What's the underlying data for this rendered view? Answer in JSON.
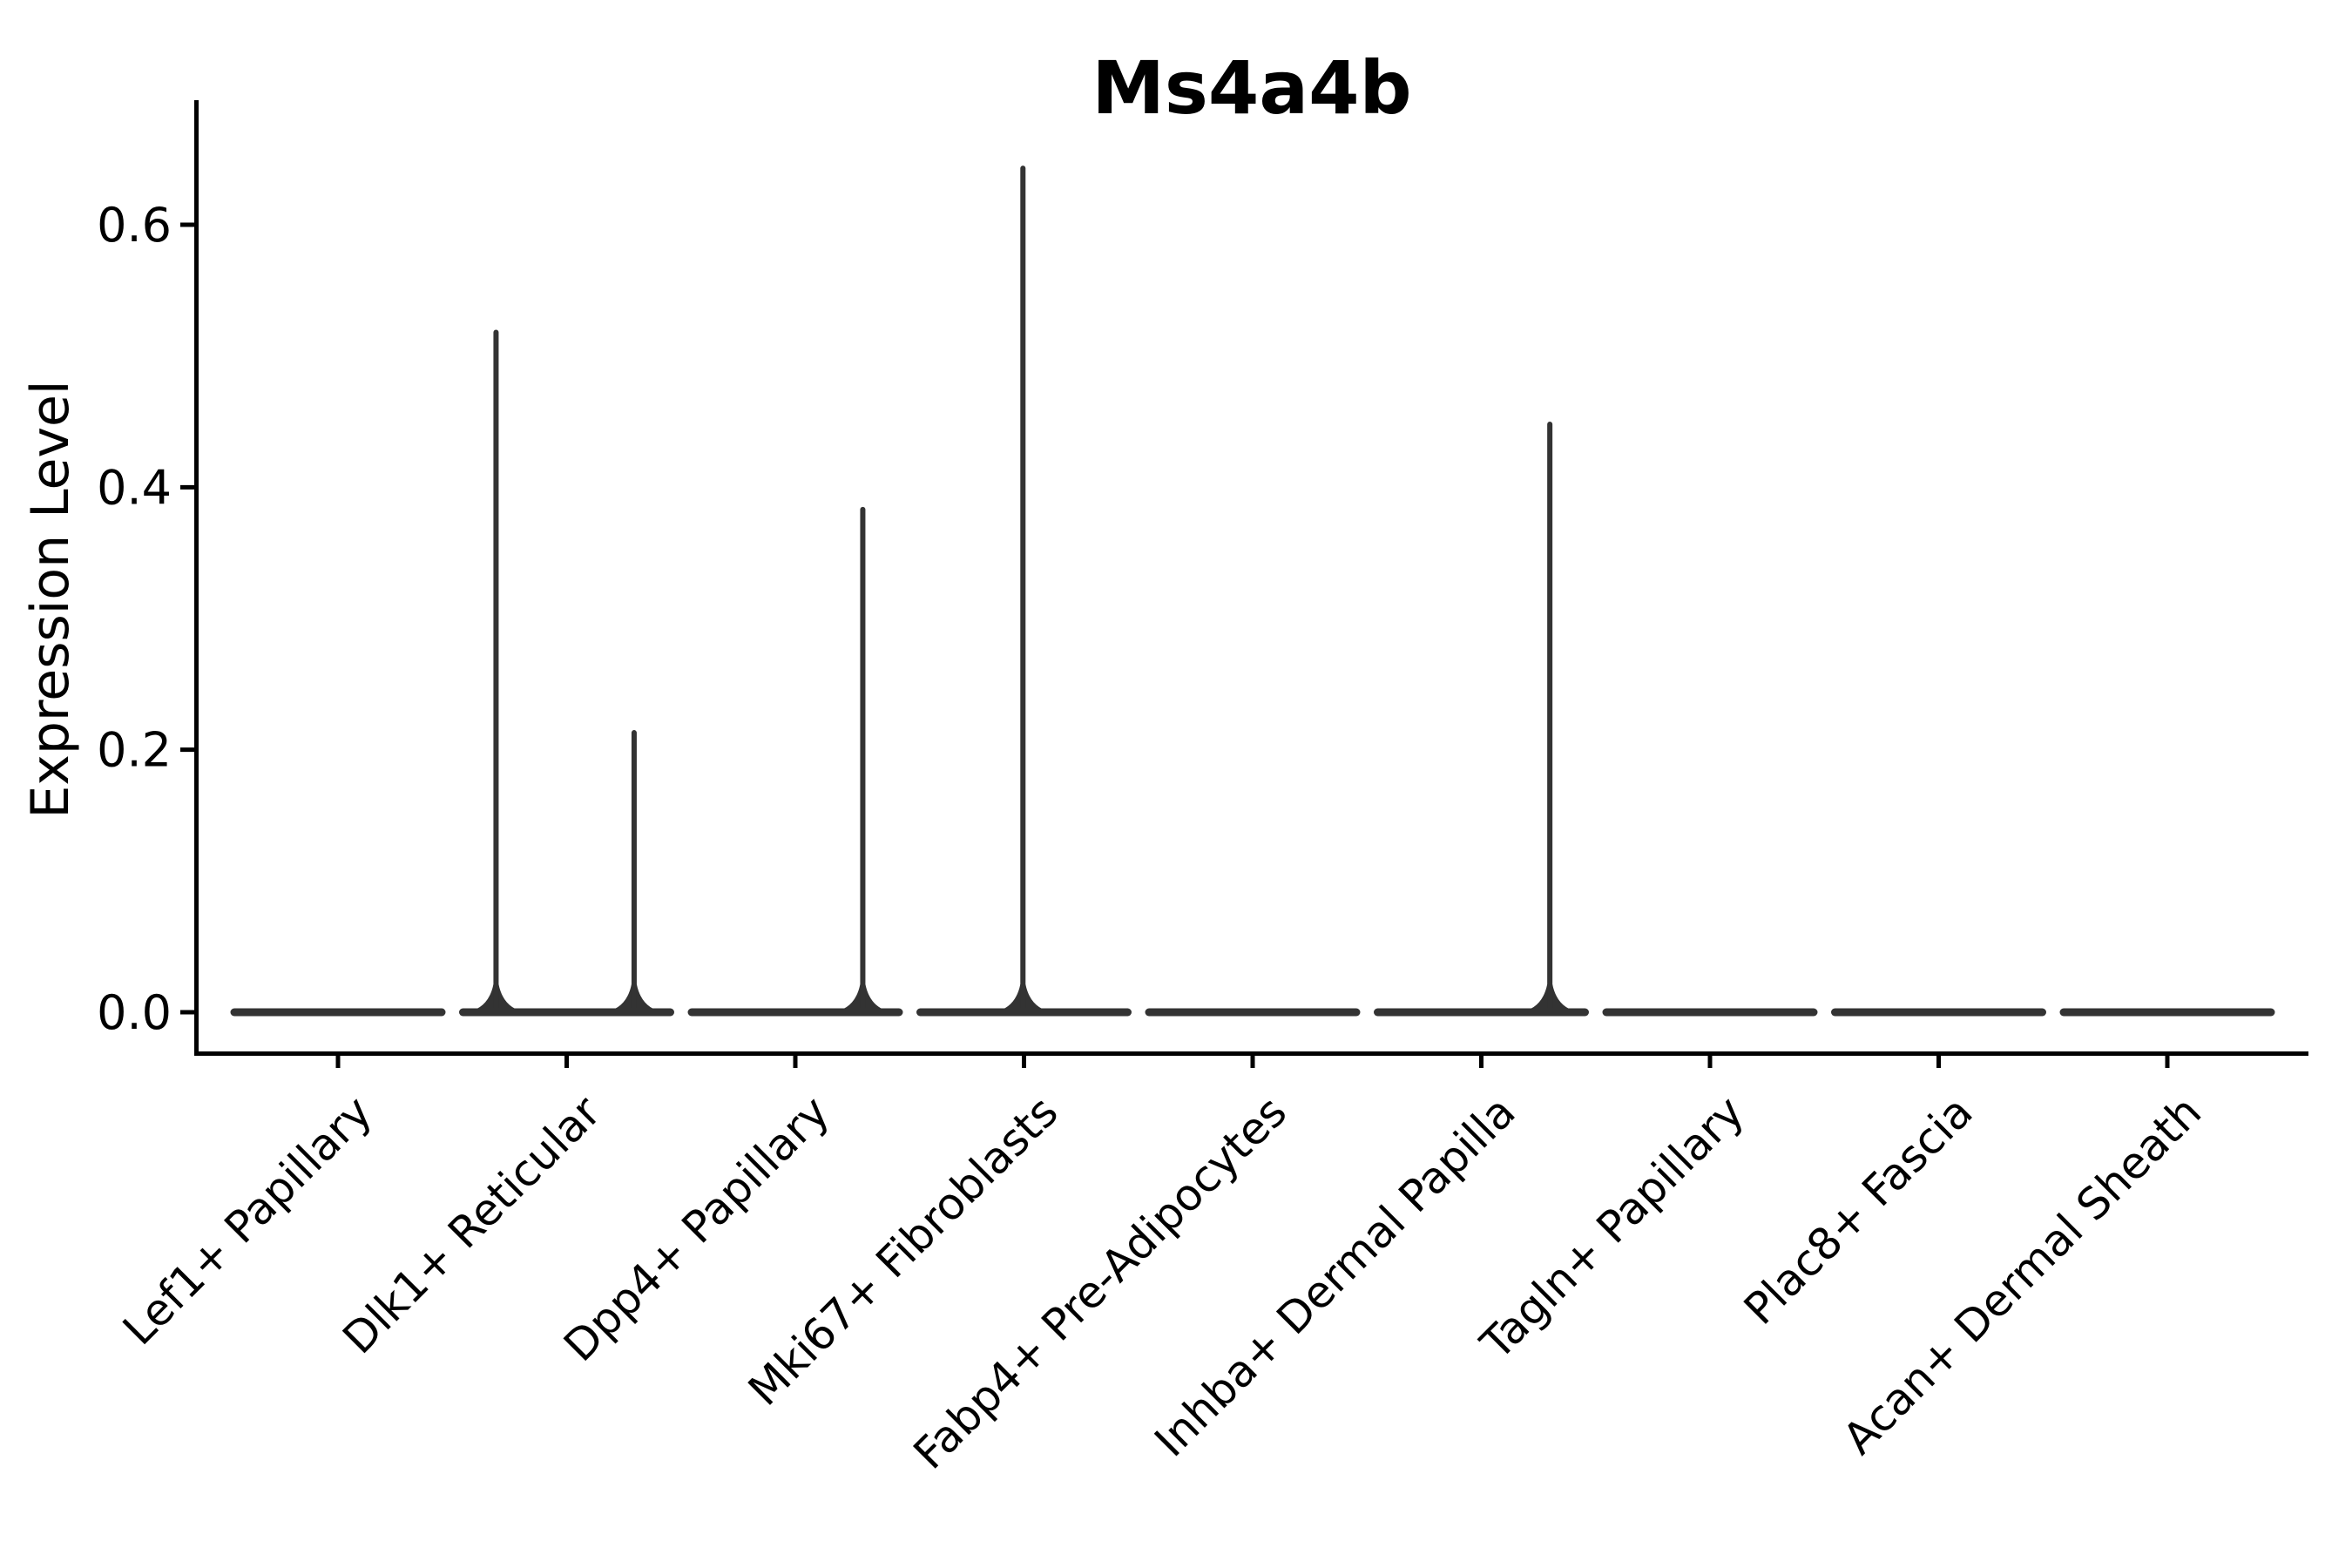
{
  "title": "Ms4a4b",
  "y_axis": {
    "label": "Expression Level",
    "tick_labels": [
      "0.0",
      "0.2",
      "0.4",
      "0.6"
    ]
  },
  "x_axis": {
    "tick_labels": [
      "Lef1+ Papillary",
      "Dlk1+ Reticular",
      "Dpp4+ Papillary",
      "Mki67+ Fibroblasts",
      "Fabp4+ Pre-Adipocytes",
      "Inhba+ Dermal Papilla",
      "Tagln+ Papillary",
      "Plac8+ Fascia",
      "Acan+ Dermal Sheath"
    ]
  },
  "chart_data": {
    "type": "violin",
    "title": "Ms4a4b",
    "xlabel": "",
    "ylabel": "Expression Level",
    "ylim": [
      -0.03,
      0.69
    ],
    "yticks": [
      0.0,
      0.2,
      0.4,
      0.6
    ],
    "ytick_labels": [
      "0.0",
      "0.2",
      "0.4",
      "0.6"
    ],
    "grid": false,
    "legend": "none",
    "categories": [
      "Lef1+ Papillary",
      "Dlk1+ Reticular",
      "Dpp4+ Papillary",
      "Mki67+ Fibroblasts",
      "Fabp4+ Pre-Adipocytes",
      "Inhba+ Dermal Papilla",
      "Tagln+ Papillary",
      "Plac8+ Fascia",
      "Acan+ Dermal Sheath"
    ],
    "violins": [
      {
        "category": "Lef1+ Papillary",
        "baseline_value": 0.0,
        "max_expression": 0.0,
        "spikes": []
      },
      {
        "category": "Dlk1+ Reticular",
        "baseline_value": 0.0,
        "max_expression": 0.52,
        "spikes": [
          {
            "pos": -0.67,
            "value": 0.52
          },
          {
            "pos": 0.64,
            "value": 0.215
          }
        ]
      },
      {
        "category": "Dpp4+ Papillary",
        "baseline_value": 0.0,
        "max_expression": 0.385,
        "spikes": [
          {
            "pos": 0.64,
            "value": 0.385
          }
        ]
      },
      {
        "category": "Mki67+ Fibroblasts",
        "baseline_value": 0.0,
        "max_expression": 0.645,
        "spikes": [
          {
            "pos": -0.01,
            "value": 0.645
          }
        ]
      },
      {
        "category": "Fabp4+ Pre-Adipocytes",
        "baseline_value": 0.0,
        "max_expression": 0.0,
        "spikes": []
      },
      {
        "category": "Inhba+ Dermal Papilla",
        "baseline_value": 0.0,
        "max_expression": 0.45,
        "spikes": [
          {
            "pos": 0.65,
            "value": 0.45
          }
        ]
      },
      {
        "category": "Tagln+ Papillary",
        "baseline_value": 0.0,
        "max_expression": 0.0,
        "spikes": []
      },
      {
        "category": "Plac8+ Fascia",
        "baseline_value": 0.0,
        "max_expression": 0.0,
        "spikes": []
      },
      {
        "category": "Acan+ Dermal Sheath",
        "baseline_value": 0.0,
        "max_expression": 0.0,
        "spikes": []
      }
    ],
    "style": {
      "violin_color": "#333333",
      "axis_color": "#000000",
      "background_color": "#ffffff"
    }
  }
}
